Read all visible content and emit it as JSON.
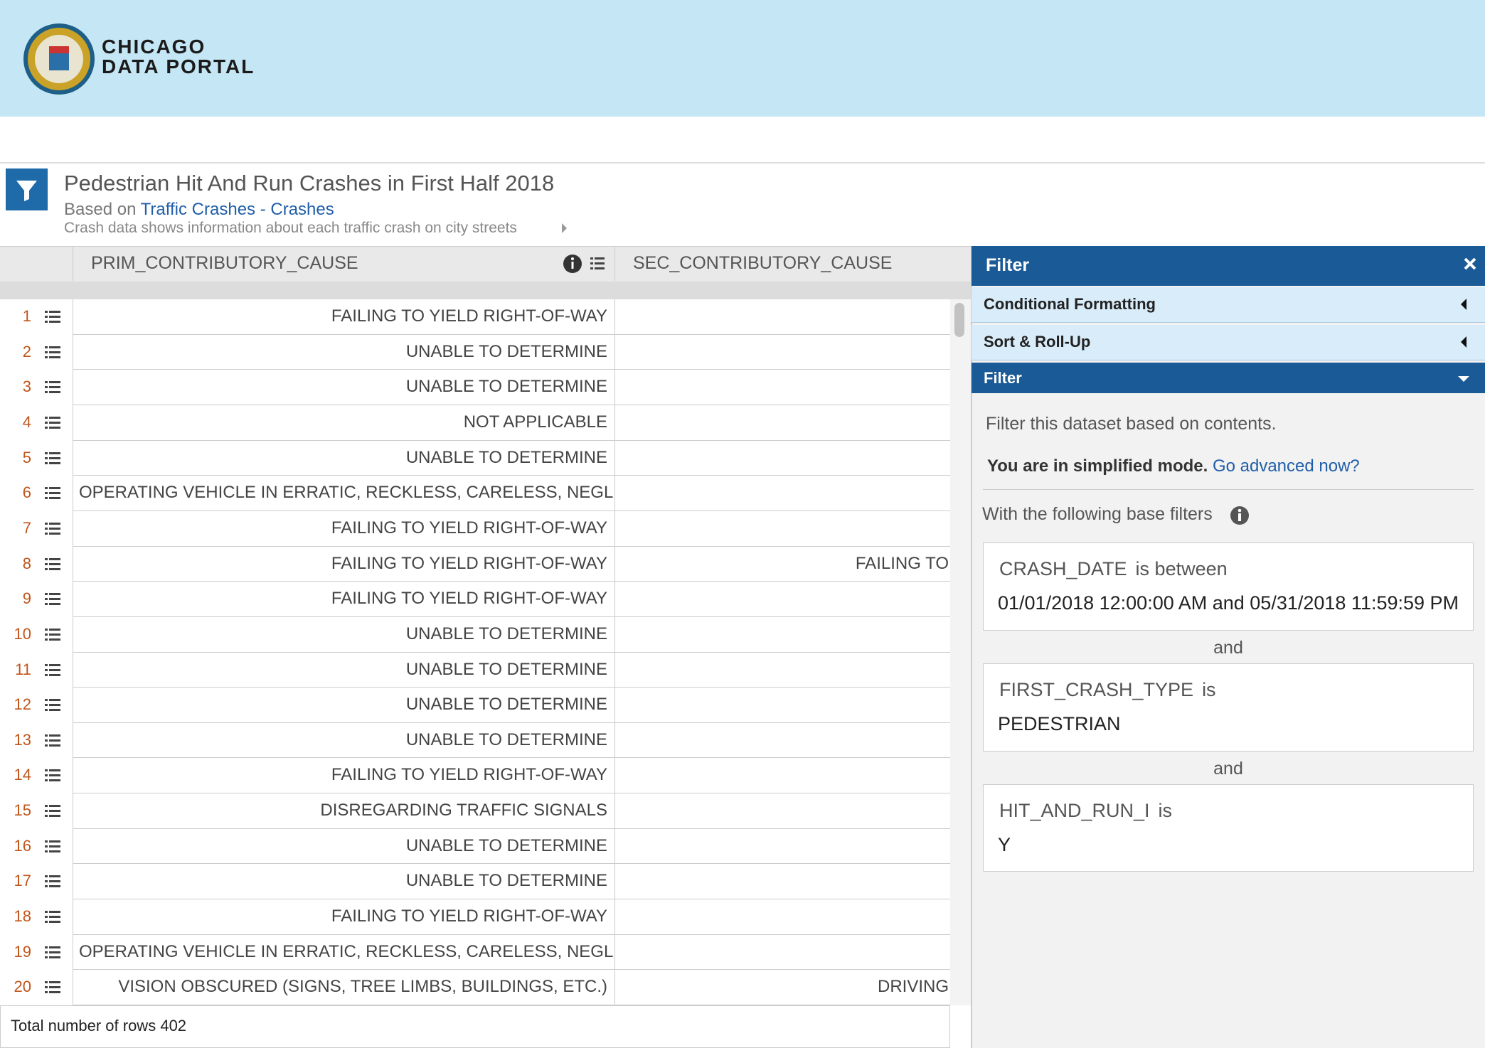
{
  "header": {
    "logo_line1": "CHICAGO",
    "logo_line2": "DATA PORTAL"
  },
  "dataset": {
    "title": "Pedestrian Hit And Run Crashes in First Half 2018",
    "based_on_prefix": "Based on",
    "based_on_link": "Traffic Crashes - Crashes",
    "description": "Crash data shows information about each traffic crash on city streets"
  },
  "table": {
    "columns": [
      "PRIM_CONTRIBUTORY_CAUSE",
      "SEC_CONTRIBUTORY_CAUSE"
    ],
    "rows": [
      {
        "number": 1,
        "prim": "FAILING TO YIELD RIGHT-OF-WAY"
      },
      {
        "number": 2,
        "prim": "UNABLE TO DETERMINE"
      },
      {
        "number": 3,
        "prim": "UNABLE TO DETERMINE"
      },
      {
        "number": 4,
        "prim": "NOT APPLICABLE"
      },
      {
        "number": 5,
        "prim": "UNABLE TO DETERMINE"
      },
      {
        "number": 6,
        "prim": "OPERATING VEHICLE IN ERRATIC, RECKLESS, CARELESS, NEGL"
      },
      {
        "number": 7,
        "prim": "FAILING TO YIELD RIGHT-OF-WAY"
      },
      {
        "number": 8,
        "prim": "FAILING TO YIELD RIGHT-OF-WAY",
        "sec": "FAILING TO"
      },
      {
        "number": 9,
        "prim": "FAILING TO YIELD RIGHT-OF-WAY"
      },
      {
        "number": 10,
        "prim": "UNABLE TO DETERMINE"
      },
      {
        "number": 11,
        "prim": "UNABLE TO DETERMINE"
      },
      {
        "number": 12,
        "prim": "UNABLE TO DETERMINE"
      },
      {
        "number": 13,
        "prim": "UNABLE TO DETERMINE"
      },
      {
        "number": 14,
        "prim": "FAILING TO YIELD RIGHT-OF-WAY"
      },
      {
        "number": 15,
        "prim": "DISREGARDING TRAFFIC SIGNALS"
      },
      {
        "number": 16,
        "prim": "UNABLE TO DETERMINE"
      },
      {
        "number": 17,
        "prim": "UNABLE TO DETERMINE"
      },
      {
        "number": 18,
        "prim": "FAILING TO YIELD RIGHT-OF-WAY"
      },
      {
        "number": 19,
        "prim": "OPERATING VEHICLE IN ERRATIC, RECKLESS, CARELESS, NEGL"
      },
      {
        "number": 20,
        "prim": "VISION OBSCURED (SIGNS, TREE LIMBS, BUILDINGS, ETC.)",
        "sec": "DRIVING"
      }
    ],
    "footer_label": "Total number of rows",
    "total_rows": 402
  },
  "filter_panel": {
    "title": "Filter",
    "sections": [
      "Conditional Formatting",
      "Sort & Roll-Up",
      "Filter"
    ],
    "intro": "Filter this dataset based on contents.",
    "mode_text": "You are in simplified mode.",
    "mode_link": "Go advanced now?",
    "base_filters_label": "With the following base filters",
    "joiner": "and",
    "conditions": [
      {
        "field": "CRASH_DATE",
        "operator": "is between",
        "value": "01/01/2018 12:00:00 AM and 05/31/2018 11:59:59 PM"
      },
      {
        "field": "FIRST_CRASH_TYPE",
        "operator": "is",
        "value": "PEDESTRIAN"
      },
      {
        "field": "HIT_AND_RUN_I",
        "operator": "is",
        "value": "Y"
      }
    ]
  }
}
